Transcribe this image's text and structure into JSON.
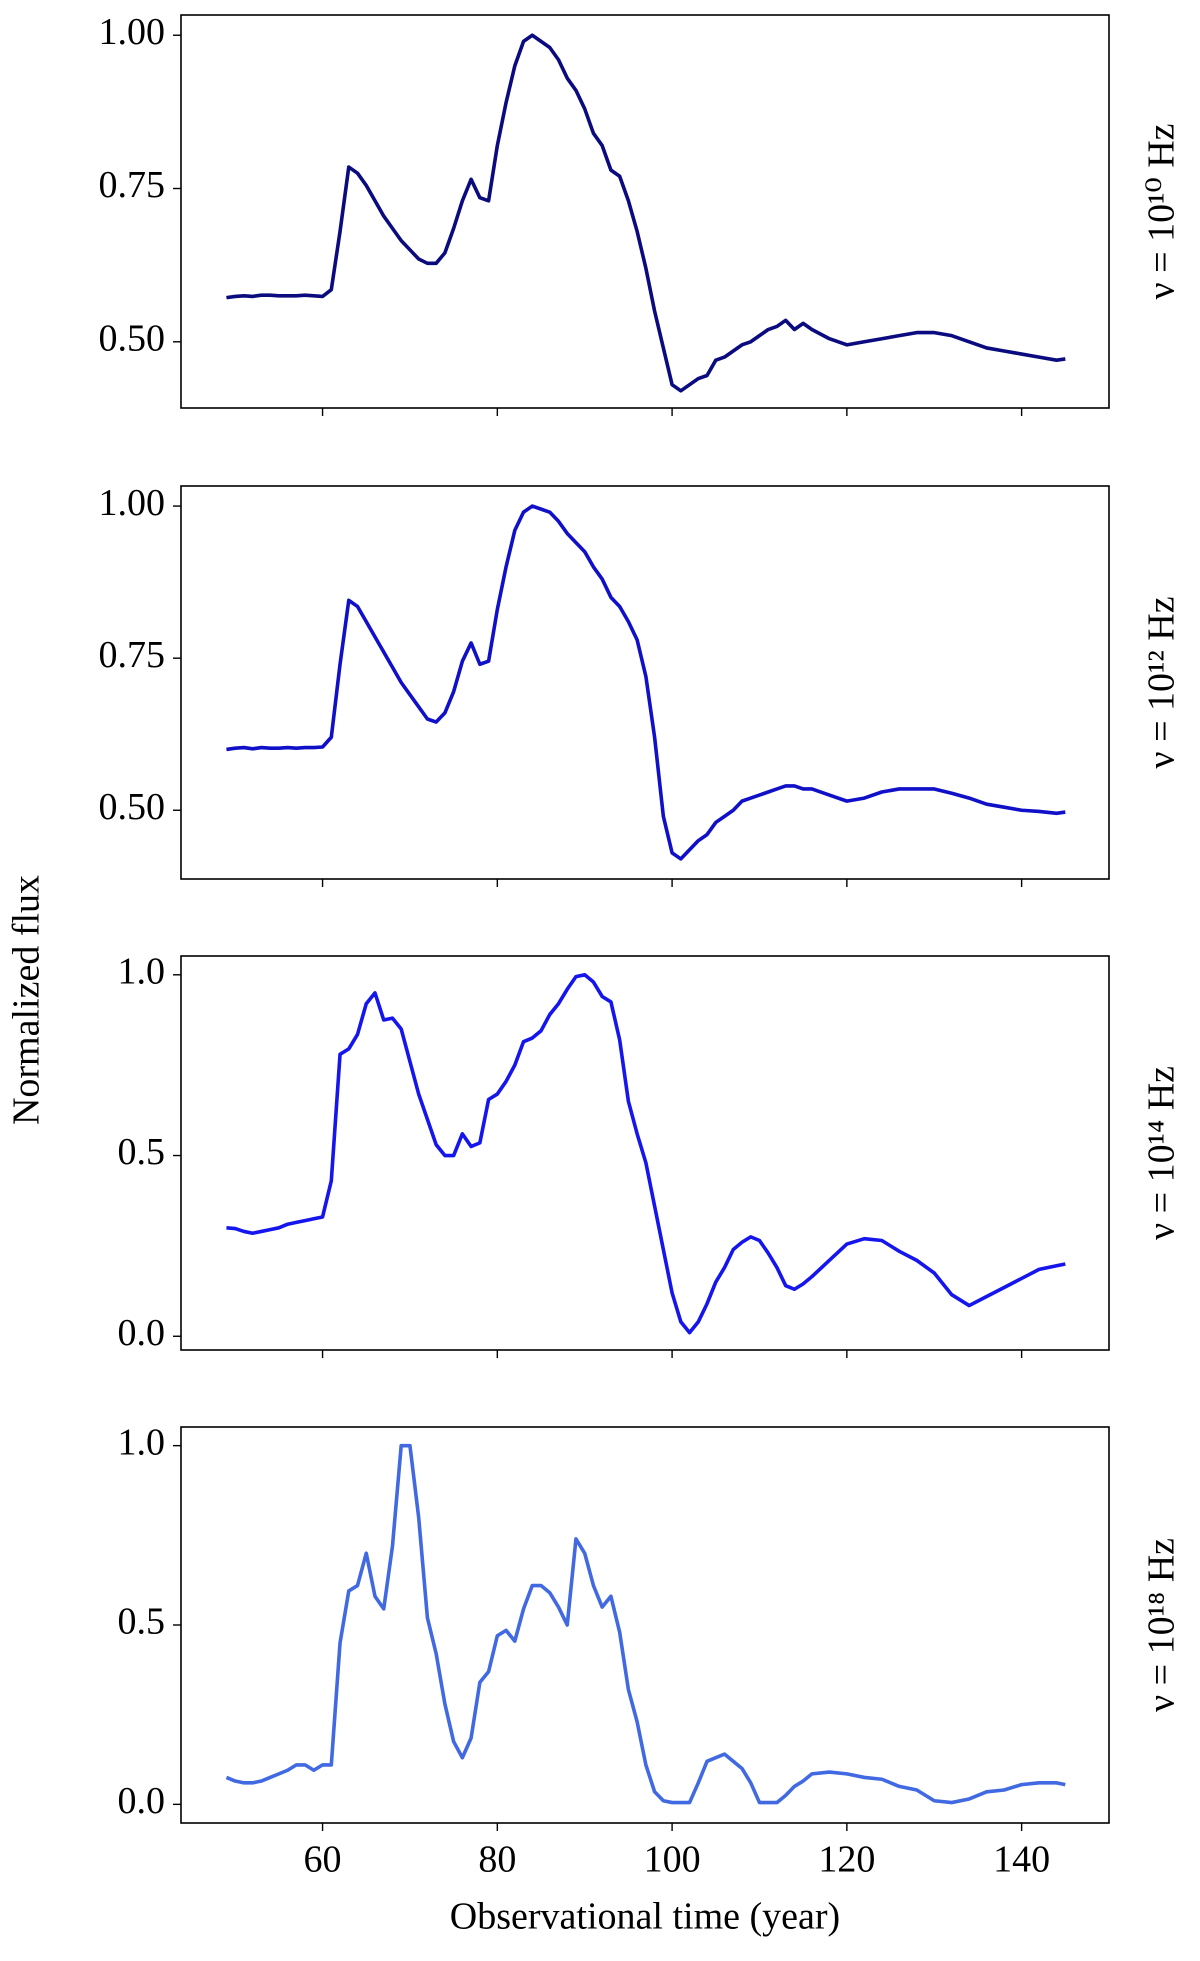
{
  "figure": {
    "ylabel": "Normalized flux",
    "xlabel": "Observational time (year)"
  },
  "chart_data": [
    {
      "type": "line",
      "label": "ν = 10¹⁰ Hz",
      "color": "#0b0b80",
      "x": [
        49,
        50,
        51,
        52,
        53,
        54,
        55,
        56,
        57,
        58,
        59,
        60,
        61,
        62,
        63,
        64,
        65,
        66,
        67,
        68,
        69,
        70,
        71,
        72,
        73,
        74,
        75,
        76,
        77,
        78,
        79,
        80,
        81,
        82,
        83,
        84,
        85,
        86,
        87,
        88,
        89,
        90,
        91,
        92,
        93,
        94,
        95,
        96,
        97,
        98,
        99,
        100,
        101,
        102,
        103,
        104,
        105,
        106,
        107,
        108,
        109,
        110,
        111,
        112,
        113,
        114,
        115,
        116,
        118,
        120,
        122,
        124,
        126,
        128,
        130,
        132,
        134,
        136,
        138,
        140,
        142,
        144,
        145
      ],
      "values": [
        0.572,
        0.574,
        0.575,
        0.574,
        0.576,
        0.576,
        0.575,
        0.575,
        0.575,
        0.576,
        0.575,
        0.574,
        0.585,
        0.68,
        0.785,
        0.775,
        0.755,
        0.73,
        0.705,
        0.685,
        0.665,
        0.65,
        0.635,
        0.628,
        0.628,
        0.645,
        0.685,
        0.73,
        0.765,
        0.735,
        0.73,
        0.82,
        0.89,
        0.95,
        0.99,
        1.0,
        0.99,
        0.98,
        0.96,
        0.93,
        0.91,
        0.88,
        0.84,
        0.82,
        0.78,
        0.77,
        0.73,
        0.68,
        0.62,
        0.55,
        0.49,
        0.43,
        0.42,
        0.43,
        0.44,
        0.445,
        0.47,
        0.475,
        0.485,
        0.495,
        0.5,
        0.51,
        0.52,
        0.525,
        0.535,
        0.52,
        0.53,
        0.52,
        0.505,
        0.495,
        0.5,
        0.505,
        0.51,
        0.515,
        0.515,
        0.51,
        0.5,
        0.49,
        0.485,
        0.48,
        0.475,
        0.47,
        0.472
      ],
      "xlim": [
        43.8,
        150
      ],
      "ylim": [
        0.392,
        1.033
      ],
      "xticks": [
        60,
        80,
        100,
        120,
        140
      ],
      "show_xtick_labels": false,
      "yticks": [
        {
          "value": 0.5,
          "label": "0.50"
        },
        {
          "value": 0.75,
          "label": "0.75"
        },
        {
          "value": 1.0,
          "label": "1.00"
        }
      ]
    },
    {
      "type": "line",
      "label": "ν = 10¹² Hz",
      "color": "#1010c8",
      "x": [
        49,
        50,
        51,
        52,
        53,
        54,
        55,
        56,
        57,
        58,
        59,
        60,
        61,
        62,
        63,
        64,
        65,
        66,
        67,
        68,
        69,
        70,
        71,
        72,
        73,
        74,
        75,
        76,
        77,
        78,
        79,
        80,
        81,
        82,
        83,
        84,
        85,
        86,
        87,
        88,
        89,
        90,
        91,
        92,
        93,
        94,
        95,
        96,
        97,
        98,
        99,
        100,
        101,
        102,
        103,
        104,
        105,
        106,
        107,
        108,
        109,
        110,
        111,
        112,
        113,
        114,
        115,
        116,
        118,
        120,
        122,
        124,
        126,
        128,
        130,
        132,
        134,
        136,
        138,
        140,
        142,
        144,
        145
      ],
      "values": [
        0.6,
        0.602,
        0.603,
        0.601,
        0.603,
        0.602,
        0.602,
        0.603,
        0.602,
        0.603,
        0.603,
        0.604,
        0.62,
        0.74,
        0.845,
        0.835,
        0.81,
        0.785,
        0.76,
        0.735,
        0.71,
        0.69,
        0.67,
        0.65,
        0.645,
        0.66,
        0.695,
        0.745,
        0.775,
        0.74,
        0.745,
        0.83,
        0.9,
        0.96,
        0.99,
        1.0,
        0.995,
        0.99,
        0.975,
        0.955,
        0.94,
        0.925,
        0.9,
        0.88,
        0.85,
        0.835,
        0.81,
        0.78,
        0.72,
        0.62,
        0.49,
        0.43,
        0.42,
        0.435,
        0.45,
        0.46,
        0.48,
        0.49,
        0.5,
        0.515,
        0.52,
        0.525,
        0.53,
        0.535,
        0.54,
        0.54,
        0.535,
        0.535,
        0.525,
        0.515,
        0.52,
        0.53,
        0.535,
        0.535,
        0.535,
        0.528,
        0.52,
        0.51,
        0.505,
        0.5,
        0.498,
        0.495,
        0.497
      ],
      "xlim": [
        43.8,
        150
      ],
      "ylim": [
        0.387,
        1.033
      ],
      "xticks": [
        60,
        80,
        100,
        120,
        140
      ],
      "show_xtick_labels": false,
      "yticks": [
        {
          "value": 0.5,
          "label": "0.50"
        },
        {
          "value": 0.75,
          "label": "0.75"
        },
        {
          "value": 1.0,
          "label": "1.00"
        }
      ]
    },
    {
      "type": "line",
      "label": "ν = 10¹⁴ Hz",
      "color": "#1515ee",
      "x": [
        49,
        50,
        51,
        52,
        53,
        54,
        55,
        56,
        57,
        58,
        59,
        60,
        61,
        62,
        63,
        64,
        65,
        66,
        67,
        68,
        69,
        70,
        71,
        72,
        73,
        74,
        75,
        76,
        77,
        78,
        79,
        80,
        81,
        82,
        83,
        84,
        85,
        86,
        87,
        88,
        89,
        90,
        91,
        92,
        93,
        94,
        95,
        96,
        97,
        98,
        99,
        100,
        101,
        102,
        103,
        104,
        105,
        106,
        107,
        108,
        109,
        110,
        111,
        112,
        113,
        114,
        115,
        116,
        118,
        120,
        122,
        124,
        126,
        128,
        130,
        132,
        134,
        136,
        138,
        140,
        142,
        144,
        145
      ],
      "values": [
        0.3,
        0.298,
        0.29,
        0.285,
        0.29,
        0.295,
        0.3,
        0.31,
        0.315,
        0.32,
        0.325,
        0.33,
        0.43,
        0.78,
        0.795,
        0.835,
        0.92,
        0.95,
        0.875,
        0.88,
        0.85,
        0.76,
        0.67,
        0.6,
        0.53,
        0.5,
        0.5,
        0.56,
        0.525,
        0.535,
        0.655,
        0.67,
        0.705,
        0.75,
        0.815,
        0.825,
        0.845,
        0.89,
        0.92,
        0.96,
        0.995,
        1.0,
        0.98,
        0.94,
        0.925,
        0.82,
        0.65,
        0.56,
        0.48,
        0.36,
        0.24,
        0.12,
        0.04,
        0.01,
        0.04,
        0.09,
        0.15,
        0.19,
        0.24,
        0.26,
        0.275,
        0.265,
        0.23,
        0.19,
        0.14,
        0.13,
        0.145,
        0.165,
        0.21,
        0.255,
        0.27,
        0.265,
        0.235,
        0.21,
        0.175,
        0.115,
        0.085,
        0.11,
        0.135,
        0.16,
        0.185,
        0.195,
        0.2
      ],
      "xlim": [
        43.8,
        150
      ],
      "ylim": [
        -0.038,
        1.052
      ],
      "xticks": [
        60,
        80,
        100,
        120,
        140
      ],
      "show_xtick_labels": false,
      "yticks": [
        {
          "value": 0.0,
          "label": "0.0"
        },
        {
          "value": 0.5,
          "label": "0.5"
        },
        {
          "value": 1.0,
          "label": "1.0"
        }
      ]
    },
    {
      "type": "line",
      "label": "ν = 10¹⁸ Hz",
      "color": "#4169e1",
      "x": [
        49,
        50,
        51,
        52,
        53,
        54,
        55,
        56,
        57,
        58,
        59,
        60,
        61,
        62,
        63,
        64,
        65,
        66,
        67,
        68,
        69,
        70,
        71,
        72,
        73,
        74,
        75,
        76,
        77,
        78,
        79,
        80,
        81,
        82,
        83,
        84,
        85,
        86,
        87,
        88,
        89,
        90,
        91,
        92,
        93,
        94,
        95,
        96,
        97,
        98,
        99,
        100,
        101,
        102,
        103,
        104,
        105,
        106,
        107,
        108,
        109,
        110,
        111,
        112,
        113,
        114,
        115,
        116,
        118,
        120,
        122,
        124,
        126,
        128,
        130,
        132,
        134,
        136,
        138,
        140,
        142,
        144,
        145
      ],
      "values": [
        0.075,
        0.065,
        0.06,
        0.06,
        0.065,
        0.075,
        0.085,
        0.095,
        0.11,
        0.11,
        0.095,
        0.11,
        0.11,
        0.45,
        0.595,
        0.61,
        0.7,
        0.58,
        0.545,
        0.72,
        1.0,
        1.0,
        0.8,
        0.52,
        0.42,
        0.28,
        0.175,
        0.13,
        0.185,
        0.34,
        0.37,
        0.47,
        0.485,
        0.455,
        0.545,
        0.61,
        0.61,
        0.59,
        0.55,
        0.5,
        0.74,
        0.7,
        0.61,
        0.55,
        0.58,
        0.48,
        0.32,
        0.23,
        0.11,
        0.035,
        0.01,
        0.005,
        0.005,
        0.005,
        0.06,
        0.12,
        0.13,
        0.14,
        0.12,
        0.1,
        0.06,
        0.005,
        0.005,
        0.005,
        0.025,
        0.05,
        0.065,
        0.085,
        0.09,
        0.085,
        0.075,
        0.07,
        0.05,
        0.04,
        0.01,
        0.005,
        0.015,
        0.035,
        0.04,
        0.055,
        0.06,
        0.06,
        0.055
      ],
      "xlim": [
        43.8,
        150
      ],
      "ylim": [
        -0.052,
        1.052
      ],
      "xticks": [
        60,
        80,
        100,
        120,
        140
      ],
      "show_xtick_labels": true,
      "yticks": [
        {
          "value": 0.0,
          "label": "0.0"
        },
        {
          "value": 0.5,
          "label": "0.5"
        },
        {
          "value": 1.0,
          "label": "1.0"
        }
      ]
    }
  ]
}
